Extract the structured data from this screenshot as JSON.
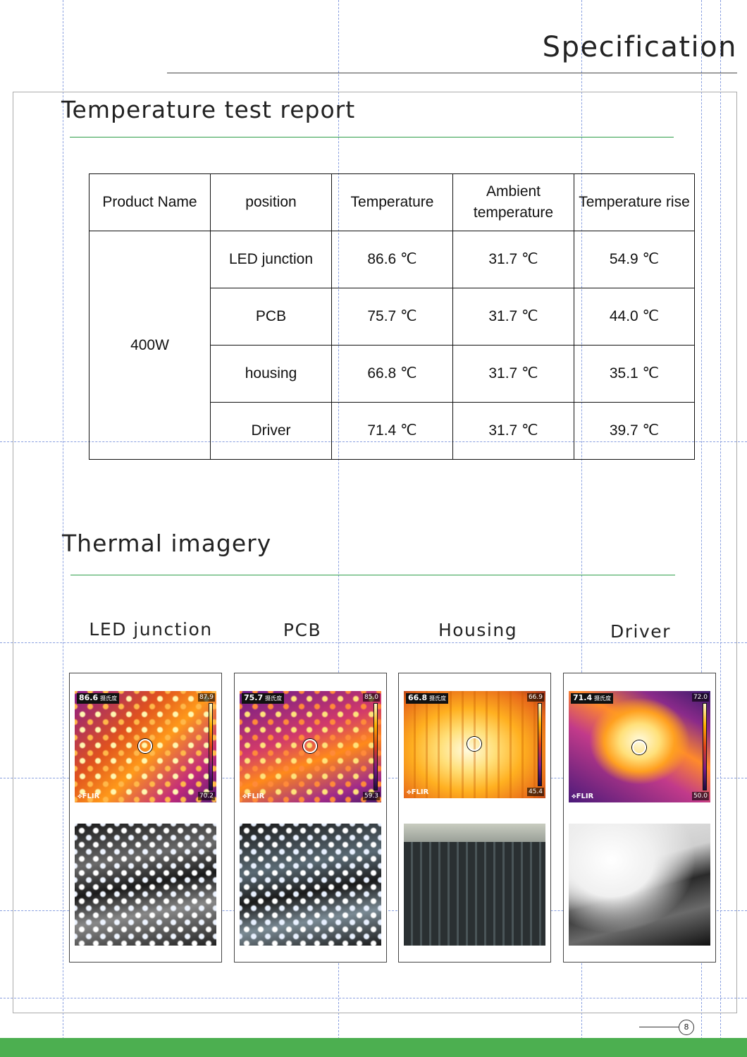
{
  "page": {
    "title": "Specification",
    "number": "8",
    "accent_green": "#4caf50"
  },
  "sections": {
    "test_report": "Temperature test report",
    "thermal": "Thermal imagery"
  },
  "table": {
    "headers": {
      "product": "Product Name",
      "position": "position",
      "temperature": "Temperature",
      "ambient": "Ambient temperature",
      "rise": "Temperature rise"
    },
    "product": "400W",
    "rows": [
      {
        "position": "LED junction",
        "temperature": "86.6 ℃",
        "ambient": "31.7 ℃",
        "rise": "54.9 ℃"
      },
      {
        "position": "PCB",
        "temperature": "75.7 ℃",
        "ambient": "31.7 ℃",
        "rise": "44.0 ℃"
      },
      {
        "position": "housing",
        "temperature": "66.8 ℃",
        "ambient": "31.7 ℃",
        "rise": "35.1 ℃"
      },
      {
        "position": "Driver",
        "temperature": "71.4 ℃",
        "ambient": "31.7 ℃",
        "rise": "39.7 ℃"
      }
    ]
  },
  "thermal_images": [
    {
      "label": "LED junction",
      "reading": "86.6",
      "unit": "摄氏度",
      "max": "87.9",
      "min": "70.2",
      "brand": "FLIR"
    },
    {
      "label": "PCB",
      "reading": "75.7",
      "unit": "摄氏度",
      "max": "85.0",
      "min": "59.3",
      "brand": "FLIR"
    },
    {
      "label": "Housing",
      "reading": "66.8",
      "unit": "摄氏度",
      "max": "66.9",
      "min": "45.4",
      "brand": "FLIR"
    },
    {
      "label": "Driver",
      "reading": "71.4",
      "unit": "摄氏度",
      "max": "72.0",
      "min": "50.0",
      "brand": "FLIR"
    }
  ]
}
